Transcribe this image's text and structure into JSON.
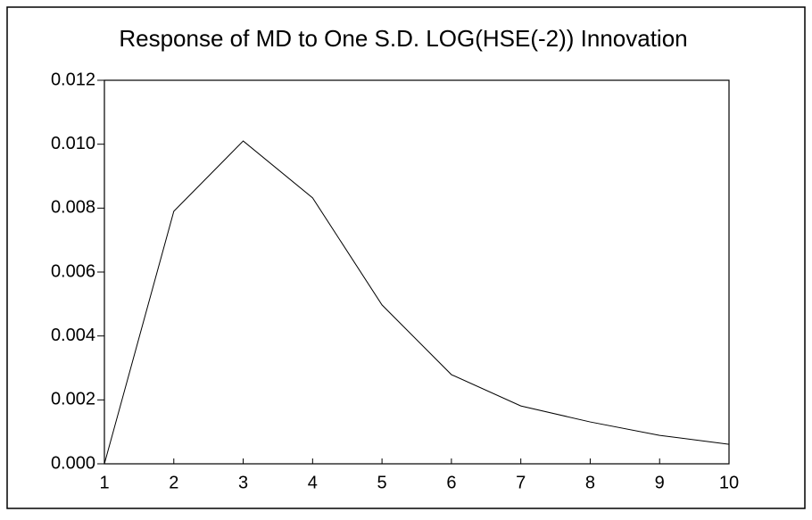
{
  "chart_data": {
    "type": "line",
    "title": "Response of MD to One S.D. LOG(HSE(-2)) Innovation",
    "x": [
      1,
      2,
      3,
      4,
      5,
      6,
      7,
      8,
      9,
      10
    ],
    "series": [
      {
        "color": "#000000",
        "values": [
          0.0,
          0.0079,
          0.0101,
          0.00832,
          0.00497,
          0.00279,
          0.00181,
          0.00131,
          0.00089,
          0.00061
        ]
      }
    ],
    "xlim": [
      1,
      10
    ],
    "xticks": [
      1,
      2,
      3,
      4,
      5,
      6,
      7,
      8,
      9,
      10
    ],
    "ylim": [
      0,
      0.012
    ],
    "yticks": [
      {
        "value": 0,
        "label": "0.000"
      },
      {
        "value": 0.002,
        "label": "0.002"
      },
      {
        "value": 0.004,
        "label": "0.004"
      },
      {
        "value": 0.006,
        "label": "0.006"
      },
      {
        "value": 0.008,
        "label": "0.008"
      },
      {
        "value": 0.01,
        "label": "0.010"
      },
      {
        "value": 0.012,
        "label": "0.012"
      }
    ],
    "grid": false
  }
}
